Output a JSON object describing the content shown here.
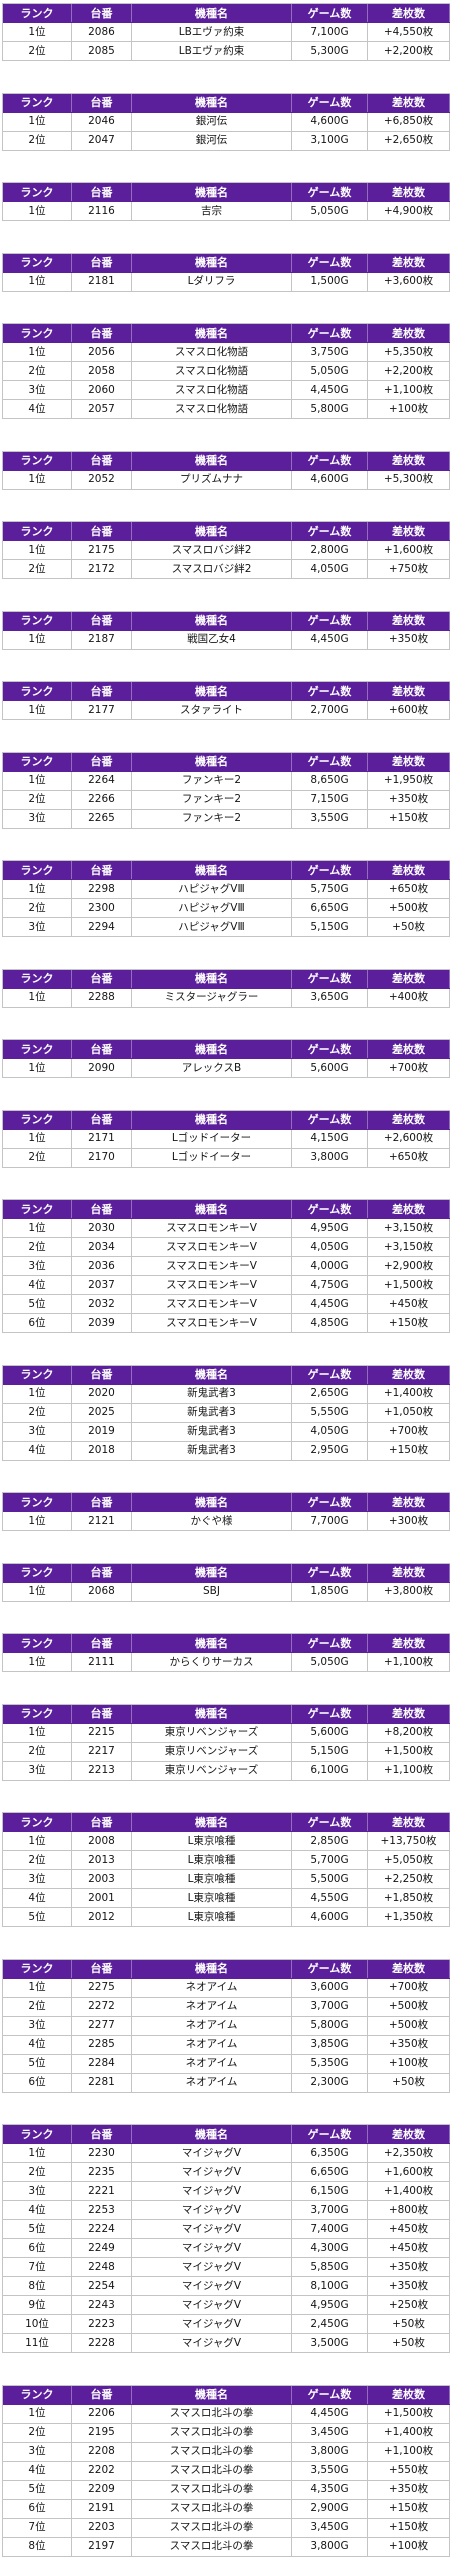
{
  "colors": {
    "header_background": "#5b1f9b",
    "header_text": "#ffffff",
    "grid_line": "#c4c4c4"
  },
  "header": {
    "rank": "ランク",
    "no": "台番",
    "model": "機種名",
    "games": "ゲーム数",
    "diff": "差枚数"
  },
  "tables": [
    {
      "rows": [
        {
          "rank": "1位",
          "no": "2086",
          "model": "LBエヴァ約束",
          "games": "7,100G",
          "diff": "+4,550枚"
        },
        {
          "rank": "2位",
          "no": "2085",
          "model": "LBエヴァ約束",
          "games": "5,300G",
          "diff": "+2,200枚"
        }
      ]
    },
    {
      "rows": [
        {
          "rank": "1位",
          "no": "2046",
          "model": "銀河伝",
          "games": "4,600G",
          "diff": "+6,850枚"
        },
        {
          "rank": "2位",
          "no": "2047",
          "model": "銀河伝",
          "games": "3,100G",
          "diff": "+2,650枚"
        }
      ]
    },
    {
      "rows": [
        {
          "rank": "1位",
          "no": "2116",
          "model": "吉宗",
          "games": "5,050G",
          "diff": "+4,900枚"
        }
      ]
    },
    {
      "rows": [
        {
          "rank": "1位",
          "no": "2181",
          "model": "Lダリフラ",
          "games": "1,500G",
          "diff": "+3,600枚"
        }
      ]
    },
    {
      "rows": [
        {
          "rank": "1位",
          "no": "2056",
          "model": "スマスロ化物語",
          "games": "3,750G",
          "diff": "+5,350枚"
        },
        {
          "rank": "2位",
          "no": "2058",
          "model": "スマスロ化物語",
          "games": "5,050G",
          "diff": "+2,200枚"
        },
        {
          "rank": "3位",
          "no": "2060",
          "model": "スマスロ化物語",
          "games": "4,450G",
          "diff": "+1,100枚"
        },
        {
          "rank": "4位",
          "no": "2057",
          "model": "スマスロ化物語",
          "games": "5,800G",
          "diff": "+100枚"
        }
      ]
    },
    {
      "rows": [
        {
          "rank": "1位",
          "no": "2052",
          "model": "プリズムナナ",
          "games": "4,600G",
          "diff": "+5,300枚"
        }
      ]
    },
    {
      "rows": [
        {
          "rank": "1位",
          "no": "2175",
          "model": "スマスロバジ絆2",
          "games": "2,800G",
          "diff": "+1,600枚"
        },
        {
          "rank": "2位",
          "no": "2172",
          "model": "スマスロバジ絆2",
          "games": "4,050G",
          "diff": "+750枚"
        }
      ]
    },
    {
      "rows": [
        {
          "rank": "1位",
          "no": "2187",
          "model": "戦国乙女4",
          "games": "4,450G",
          "diff": "+350枚"
        }
      ]
    },
    {
      "rows": [
        {
          "rank": "1位",
          "no": "2177",
          "model": "スタァライト",
          "games": "2,700G",
          "diff": "+600枚"
        }
      ]
    },
    {
      "rows": [
        {
          "rank": "1位",
          "no": "2264",
          "model": "ファンキー2",
          "games": "8,650G",
          "diff": "+1,950枚"
        },
        {
          "rank": "2位",
          "no": "2266",
          "model": "ファンキー2",
          "games": "7,150G",
          "diff": "+350枚"
        },
        {
          "rank": "3位",
          "no": "2265",
          "model": "ファンキー2",
          "games": "3,550G",
          "diff": "+150枚"
        }
      ]
    },
    {
      "rows": [
        {
          "rank": "1位",
          "no": "2298",
          "model": "ハピジャグVⅢ",
          "games": "5,750G",
          "diff": "+650枚"
        },
        {
          "rank": "2位",
          "no": "2300",
          "model": "ハピジャグVⅢ",
          "games": "6,650G",
          "diff": "+500枚"
        },
        {
          "rank": "3位",
          "no": "2294",
          "model": "ハピジャグVⅢ",
          "games": "5,150G",
          "diff": "+50枚"
        }
      ]
    },
    {
      "rows": [
        {
          "rank": "1位",
          "no": "2288",
          "model": "ミスタージャグラー",
          "games": "3,650G",
          "diff": "+400枚"
        }
      ]
    },
    {
      "rows": [
        {
          "rank": "1位",
          "no": "2090",
          "model": "アレックスB",
          "games": "5,600G",
          "diff": "+700枚"
        }
      ]
    },
    {
      "rows": [
        {
          "rank": "1位",
          "no": "2171",
          "model": "Lゴッドイーター",
          "games": "4,150G",
          "diff": "+2,600枚"
        },
        {
          "rank": "2位",
          "no": "2170",
          "model": "Lゴッドイーター",
          "games": "3,800G",
          "diff": "+650枚"
        }
      ]
    },
    {
      "rows": [
        {
          "rank": "1位",
          "no": "2030",
          "model": "スマスロモンキーV",
          "games": "4,950G",
          "diff": "+3,150枚"
        },
        {
          "rank": "2位",
          "no": "2034",
          "model": "スマスロモンキーV",
          "games": "4,050G",
          "diff": "+3,150枚"
        },
        {
          "rank": "3位",
          "no": "2036",
          "model": "スマスロモンキーV",
          "games": "4,000G",
          "diff": "+2,900枚"
        },
        {
          "rank": "4位",
          "no": "2037",
          "model": "スマスロモンキーV",
          "games": "4,750G",
          "diff": "+1,500枚"
        },
        {
          "rank": "5位",
          "no": "2032",
          "model": "スマスロモンキーV",
          "games": "4,450G",
          "diff": "+450枚"
        },
        {
          "rank": "6位",
          "no": "2039",
          "model": "スマスロモンキーV",
          "games": "4,850G",
          "diff": "+150枚"
        }
      ]
    },
    {
      "rows": [
        {
          "rank": "1位",
          "no": "2020",
          "model": "新鬼武者3",
          "games": "2,650G",
          "diff": "+1,400枚"
        },
        {
          "rank": "2位",
          "no": "2025",
          "model": "新鬼武者3",
          "games": "5,550G",
          "diff": "+1,050枚"
        },
        {
          "rank": "3位",
          "no": "2019",
          "model": "新鬼武者3",
          "games": "4,050G",
          "diff": "+700枚"
        },
        {
          "rank": "4位",
          "no": "2018",
          "model": "新鬼武者3",
          "games": "2,950G",
          "diff": "+150枚"
        }
      ]
    },
    {
      "rows": [
        {
          "rank": "1位",
          "no": "2121",
          "model": "かぐや様",
          "games": "7,700G",
          "diff": "+300枚"
        }
      ]
    },
    {
      "rows": [
        {
          "rank": "1位",
          "no": "2068",
          "model": "SBJ",
          "games": "1,850G",
          "diff": "+3,800枚"
        }
      ]
    },
    {
      "rows": [
        {
          "rank": "1位",
          "no": "2111",
          "model": "からくりサーカス",
          "games": "5,050G",
          "diff": "+1,100枚"
        }
      ]
    },
    {
      "rows": [
        {
          "rank": "1位",
          "no": "2215",
          "model": "東京リベンジャーズ",
          "games": "5,600G",
          "diff": "+8,200枚"
        },
        {
          "rank": "2位",
          "no": "2217",
          "model": "東京リベンジャーズ",
          "games": "5,150G",
          "diff": "+1,500枚"
        },
        {
          "rank": "3位",
          "no": "2213",
          "model": "東京リベンジャーズ",
          "games": "6,100G",
          "diff": "+1,100枚"
        }
      ]
    },
    {
      "rows": [
        {
          "rank": "1位",
          "no": "2008",
          "model": "L東京喰種",
          "games": "2,850G",
          "diff": "+13,750枚"
        },
        {
          "rank": "2位",
          "no": "2013",
          "model": "L東京喰種",
          "games": "5,700G",
          "diff": "+5,050枚"
        },
        {
          "rank": "3位",
          "no": "2003",
          "model": "L東京喰種",
          "games": "5,500G",
          "diff": "+2,250枚"
        },
        {
          "rank": "4位",
          "no": "2001",
          "model": "L東京喰種",
          "games": "4,550G",
          "diff": "+1,850枚"
        },
        {
          "rank": "5位",
          "no": "2012",
          "model": "L東京喰種",
          "games": "4,600G",
          "diff": "+1,350枚"
        }
      ]
    },
    {
      "rows": [
        {
          "rank": "1位",
          "no": "2275",
          "model": "ネオアイム",
          "games": "3,600G",
          "diff": "+700枚"
        },
        {
          "rank": "2位",
          "no": "2272",
          "model": "ネオアイム",
          "games": "3,700G",
          "diff": "+500枚"
        },
        {
          "rank": "3位",
          "no": "2277",
          "model": "ネオアイム",
          "games": "5,800G",
          "diff": "+500枚"
        },
        {
          "rank": "4位",
          "no": "2285",
          "model": "ネオアイム",
          "games": "3,850G",
          "diff": "+350枚"
        },
        {
          "rank": "5位",
          "no": "2284",
          "model": "ネオアイム",
          "games": "5,350G",
          "diff": "+100枚"
        },
        {
          "rank": "6位",
          "no": "2281",
          "model": "ネオアイム",
          "games": "2,300G",
          "diff": "+50枚"
        }
      ]
    },
    {
      "rows": [
        {
          "rank": "1位",
          "no": "2230",
          "model": "マイジャグV",
          "games": "6,350G",
          "diff": "+2,350枚"
        },
        {
          "rank": "2位",
          "no": "2235",
          "model": "マイジャグV",
          "games": "6,650G",
          "diff": "+1,600枚"
        },
        {
          "rank": "3位",
          "no": "2221",
          "model": "マイジャグV",
          "games": "6,150G",
          "diff": "+1,400枚"
        },
        {
          "rank": "4位",
          "no": "2253",
          "model": "マイジャグV",
          "games": "3,700G",
          "diff": "+800枚"
        },
        {
          "rank": "5位",
          "no": "2224",
          "model": "マイジャグV",
          "games": "7,400G",
          "diff": "+450枚"
        },
        {
          "rank": "6位",
          "no": "2249",
          "model": "マイジャグV",
          "games": "4,300G",
          "diff": "+450枚"
        },
        {
          "rank": "7位",
          "no": "2248",
          "model": "マイジャグV",
          "games": "5,850G",
          "diff": "+350枚"
        },
        {
          "rank": "8位",
          "no": "2254",
          "model": "マイジャグV",
          "games": "8,100G",
          "diff": "+350枚"
        },
        {
          "rank": "9位",
          "no": "2243",
          "model": "マイジャグV",
          "games": "4,950G",
          "diff": "+250枚"
        },
        {
          "rank": "10位",
          "no": "2223",
          "model": "マイジャグV",
          "games": "2,450G",
          "diff": "+50枚"
        },
        {
          "rank": "11位",
          "no": "2228",
          "model": "マイジャグV",
          "games": "3,500G",
          "diff": "+50枚"
        }
      ]
    },
    {
      "rows": [
        {
          "rank": "1位",
          "no": "2206",
          "model": "スマスロ北斗の拳",
          "games": "4,450G",
          "diff": "+1,500枚"
        },
        {
          "rank": "2位",
          "no": "2195",
          "model": "スマスロ北斗の拳",
          "games": "3,450G",
          "diff": "+1,400枚"
        },
        {
          "rank": "3位",
          "no": "2208",
          "model": "スマスロ北斗の拳",
          "games": "3,800G",
          "diff": "+1,100枚"
        },
        {
          "rank": "4位",
          "no": "2202",
          "model": "スマスロ北斗の拳",
          "games": "3,550G",
          "diff": "+550枚"
        },
        {
          "rank": "5位",
          "no": "2209",
          "model": "スマスロ北斗の拳",
          "games": "4,350G",
          "diff": "+350枚"
        },
        {
          "rank": "6位",
          "no": "2191",
          "model": "スマスロ北斗の拳",
          "games": "2,900G",
          "diff": "+150枚"
        },
        {
          "rank": "7位",
          "no": "2203",
          "model": "スマスロ北斗の拳",
          "games": "3,450G",
          "diff": "+150枚"
        },
        {
          "rank": "8位",
          "no": "2197",
          "model": "スマスロ北斗の拳",
          "games": "3,800G",
          "diff": "+100枚"
        }
      ]
    }
  ]
}
